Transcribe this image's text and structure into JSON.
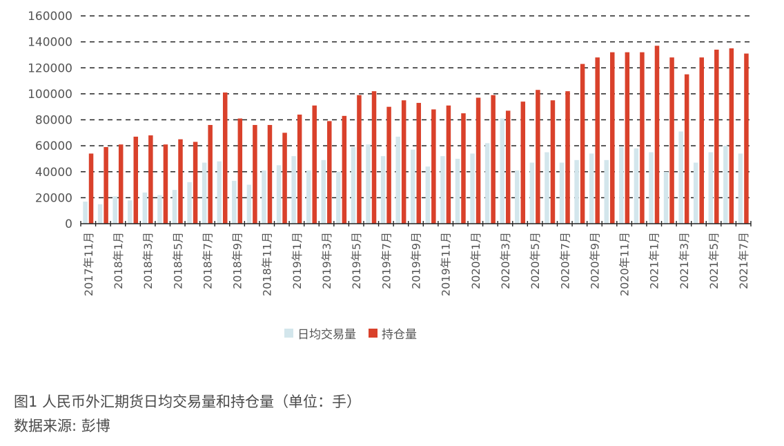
{
  "chart_data": {
    "type": "bar",
    "categories": [
      "2017年11月",
      "2017年12月",
      "2018年1月",
      "2018年2月",
      "2018年3月",
      "2018年4月",
      "2018年5月",
      "2018年6月",
      "2018年7月",
      "2018年8月",
      "2018年9月",
      "2018年10月",
      "2018年11月",
      "2018年12月",
      "2019年1月",
      "2019年2月",
      "2019年3月",
      "2019年4月",
      "2019年5月",
      "2019年6月",
      "2019年7月",
      "2019年8月",
      "2019年9月",
      "2019年10月",
      "2019年11月",
      "2019年12月",
      "2020年1月",
      "2020年2月",
      "2020年3月",
      "2020年4月",
      "2020年5月",
      "2020年6月",
      "2020年7月",
      "2020年8月",
      "2020年9月",
      "2020年10月",
      "2020年11月",
      "2020年12月",
      "2021年1月",
      "2021年2月",
      "2021年3月",
      "2021年4月",
      "2021年5月",
      "2021年6月",
      "2021年7月"
    ],
    "visible_tick_labels": [
      "2017年11月",
      "2018年1月",
      "2018年3月",
      "2018年5月",
      "2018年7月",
      "2018年9月",
      "2018年11月",
      "2019年1月",
      "2019年3月",
      "2019年5月",
      "2019年7月",
      "2019年9月",
      "2019年11月",
      "2020年1月",
      "2020年3月",
      "2020年5月",
      "2020年7月",
      "2020年9月",
      "2020年11月",
      "2021年1月",
      "2021年3月",
      "2021年5月",
      "2021年7月"
    ],
    "series": [
      {
        "name": "日均交易量",
        "color": "#d3e6ec",
        "values": [
          17000,
          15000,
          21000,
          18000,
          24000,
          22000,
          26000,
          32000,
          47000,
          48000,
          33000,
          30000,
          41000,
          45000,
          52000,
          41000,
          49000,
          40000,
          59000,
          61000,
          52000,
          67000,
          57000,
          44000,
          52000,
          50000,
          54000,
          62000,
          81000,
          41000,
          47000,
          55000,
          47000,
          49000,
          54000,
          49000,
          59000,
          58000,
          55000,
          40000,
          71000,
          47000,
          55000,
          60000,
          54000
        ]
      },
      {
        "name": "持仓量",
        "color": "#d9412b",
        "values": [
          54000,
          59000,
          61000,
          67000,
          68000,
          61000,
          65000,
          63000,
          76000,
          101000,
          81000,
          76000,
          76000,
          70000,
          84000,
          91000,
          79000,
          83000,
          99000,
          102000,
          90000,
          95000,
          93000,
          88000,
          91000,
          85000,
          97000,
          99000,
          87000,
          94000,
          103000,
          95000,
          102000,
          123000,
          128000,
          132000,
          132000,
          132000,
          137000,
          128000,
          115000,
          128000,
          134000,
          135000,
          131000
        ]
      }
    ],
    "yticks": [
      "0",
      "20000",
      "40000",
      "60000",
      "80000",
      "100000",
      "120000",
      "140000",
      "160000"
    ],
    "ylim": [
      0,
      160000
    ],
    "grid": "horizontal-dashed",
    "legend_position": "bottom-center"
  },
  "caption": {
    "line1": "图1  人民币外汇期货日均交易量和持仓量（单位：手）",
    "line2": "数据来源: 彭博"
  }
}
